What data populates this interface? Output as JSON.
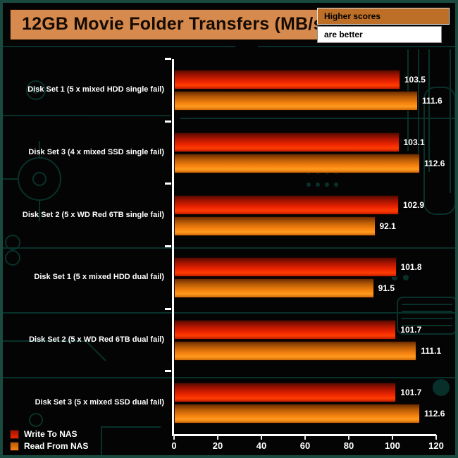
{
  "title": "12GB Movie Folder Transfers (MB/s)",
  "note": {
    "line1": "Higher scores",
    "line2": "are better"
  },
  "legend": [
    {
      "label": "Write To NAS",
      "series": "write"
    },
    {
      "label": "Read From NAS",
      "series": "read"
    }
  ],
  "colors": {
    "write_bar": "#ee2500",
    "read_bar": "#f5820f",
    "title_box": "#d68a4e",
    "note_box": "#bd6f28",
    "circuit_trace": "#0d564a",
    "background": "#040404",
    "axis": "#ffffff"
  },
  "chart_data": {
    "type": "bar",
    "orientation": "horizontal",
    "title": "12GB Movie Folder Transfers (MB/s)",
    "xlabel": "",
    "ylabel": "",
    "xlim": [
      0,
      120
    ],
    "xticks": [
      0,
      20,
      40,
      60,
      80,
      100,
      120
    ],
    "grid": false,
    "legend_position": "bottom-left",
    "categories": [
      "Disk Set 1 (5 x mixed HDD single fail)",
      "Disk Set 3 (4 x mixed SSD single fail)",
      "Disk Set 2 (5 x WD Red 6TB single fail)",
      "Disk Set 1 (5 x mixed HDD dual fail)",
      "Disk Set 2 (5 x WD Red 6TB dual fail)",
      "Disk Set 3 (5 x mixed SSD dual fail)"
    ],
    "series": [
      {
        "name": "Write To NAS",
        "values": [
          103.5,
          103.1,
          102.9,
          101.8,
          101.7,
          101.7
        ]
      },
      {
        "name": "Read From NAS",
        "values": [
          111.6,
          112.6,
          92.1,
          91.5,
          111.1,
          112.6
        ]
      }
    ]
  }
}
